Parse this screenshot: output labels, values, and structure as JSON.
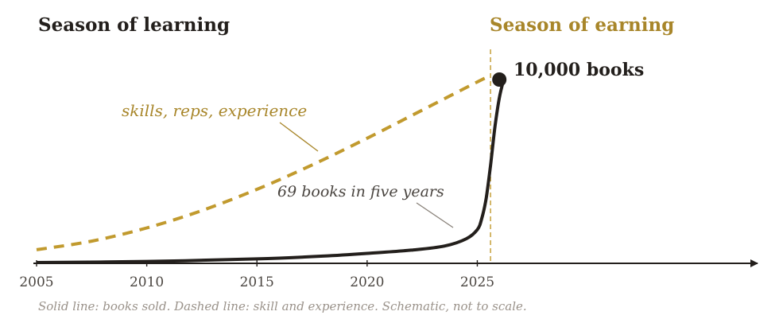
{
  "chart_data": {
    "type": "line",
    "title": "",
    "xlabel": "",
    "ylabel": "",
    "xlim": [
      2005,
      2037.5
    ],
    "ylim": [
      0,
      10000
    ],
    "x_ticks": [
      2005,
      2010,
      2015,
      2020,
      2025
    ],
    "x_tick_labels": [
      "2005",
      "2010",
      "2015",
      "2020",
      "2025"
    ],
    "grid": false,
    "legend": "none",
    "colors": {
      "books": "#231f1c",
      "skill": "#c19a2e",
      "learning_heading": "#231f1c",
      "earning_heading": "#a8862a"
    },
    "regions": [
      {
        "label": "Season of learning"
      },
      {
        "label": "Season of earning"
      }
    ],
    "divider_x": 2025.6,
    "series": [
      {
        "key": "books",
        "style": "solid",
        "x": [
          2005,
          2010,
          2015,
          2018,
          2020,
          2022,
          2023.5,
          2024.5,
          2025,
          2025.2,
          2025.4,
          2025.6,
          2025.8,
          2026.0,
          2026.2
        ],
        "y": [
          0,
          60,
          200,
          350,
          500,
          680,
          900,
          1300,
          1800,
          2400,
          3500,
          5300,
          7400,
          9000,
          10000
        ]
      },
      {
        "key": "skill",
        "style": "dashed",
        "x": [
          2005,
          2007.5,
          2010,
          2012.5,
          2015,
          2017.5,
          2020,
          2022.5,
          2025,
          2025.6
        ],
        "y": [
          700,
          1170,
          1890,
          2840,
          4000,
          5330,
          6790,
          8330,
          9870,
          10210
        ]
      }
    ],
    "endpoint": {
      "x": 2026.0,
      "y": 10000,
      "label": "10,000 books"
    },
    "annotations": [
      {
        "text": "skills, reps, experience"
      },
      {
        "text": "69 books in five years"
      }
    ],
    "caption": "Solid line: books sold. Dashed line: skill and experience. Schematic, not to scale."
  }
}
